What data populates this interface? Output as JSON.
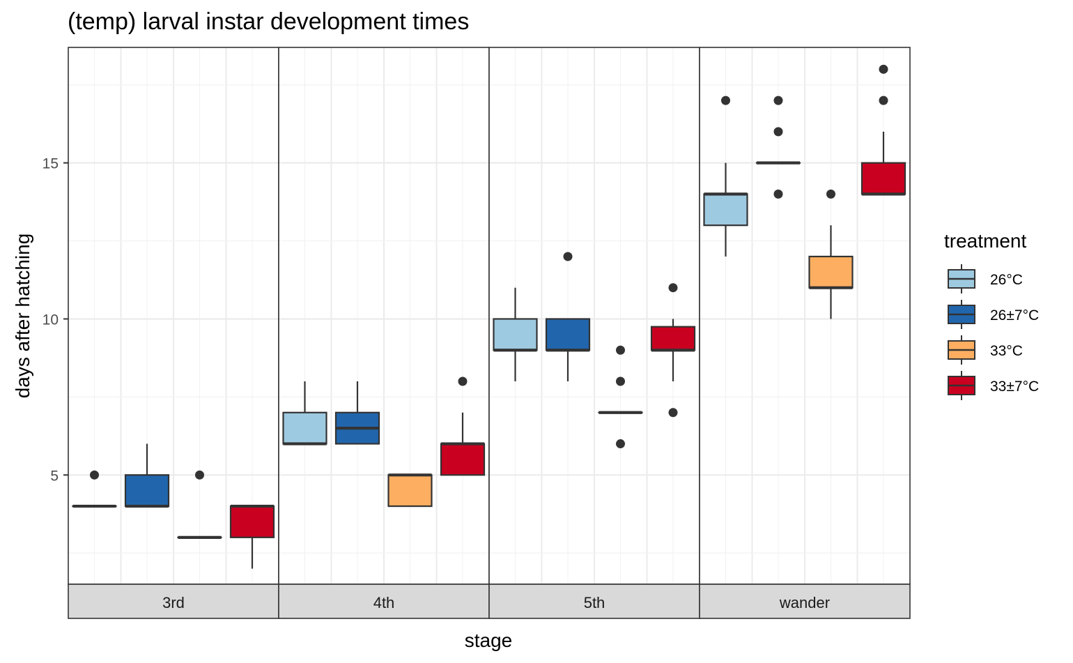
{
  "chart_data": {
    "type": "boxplot",
    "title": "(temp) larval instar development times",
    "xlabel": "stage",
    "ylabel": "days after hatching",
    "ylim": [
      1.5,
      18.7
    ],
    "yticks": [
      5,
      10,
      15
    ],
    "grid": true,
    "facets": [
      "3rd",
      "4th",
      "5th",
      "wander"
    ],
    "legend": {
      "title": "treatment",
      "position": "right",
      "entries": [
        {
          "label": "26°C",
          "color": "#9ecae1"
        },
        {
          "label": "26±7°C",
          "color": "#2166ac"
        },
        {
          "label": "33°C",
          "color": "#fdae61"
        },
        {
          "label": "33±7°C",
          "color": "#ca0020"
        }
      ]
    },
    "boxes": [
      {
        "facet": "3rd",
        "treatment": "26°C",
        "min": 4,
        "q1": 4,
        "median": 4,
        "q3": 4,
        "max": 4,
        "outliers": [
          5
        ]
      },
      {
        "facet": "3rd",
        "treatment": "26±7°C",
        "min": 4,
        "q1": 4,
        "median": 4,
        "q3": 5,
        "max": 6,
        "outliers": []
      },
      {
        "facet": "3rd",
        "treatment": "33°C",
        "min": 3,
        "q1": 3,
        "median": 3,
        "q3": 3,
        "max": 3,
        "outliers": [
          5
        ]
      },
      {
        "facet": "3rd",
        "treatment": "33±7°C",
        "min": 2,
        "q1": 3,
        "median": 4,
        "q3": 4,
        "max": 4,
        "outliers": []
      },
      {
        "facet": "4th",
        "treatment": "26°C",
        "min": 6,
        "q1": 6,
        "median": 6,
        "q3": 7,
        "max": 8,
        "outliers": []
      },
      {
        "facet": "4th",
        "treatment": "26±7°C",
        "min": 6,
        "q1": 6,
        "median": 6.5,
        "q3": 7,
        "max": 8,
        "outliers": []
      },
      {
        "facet": "4th",
        "treatment": "33°C",
        "min": 4,
        "q1": 4,
        "median": 5,
        "q3": 5,
        "max": 5,
        "outliers": []
      },
      {
        "facet": "4th",
        "treatment": "33±7°C",
        "min": 5,
        "q1": 5,
        "median": 6,
        "q3": 6,
        "max": 7,
        "outliers": [
          8
        ]
      },
      {
        "facet": "5th",
        "treatment": "26°C",
        "min": 8,
        "q1": 9,
        "median": 9,
        "q3": 10,
        "max": 11,
        "outliers": []
      },
      {
        "facet": "5th",
        "treatment": "26±7°C",
        "min": 8,
        "q1": 9,
        "median": 9,
        "q3": 10,
        "max": 10,
        "outliers": [
          12
        ]
      },
      {
        "facet": "5th",
        "treatment": "33°C",
        "min": 7,
        "q1": 7,
        "median": 7,
        "q3": 7,
        "max": 7,
        "outliers": [
          6,
          8,
          9
        ]
      },
      {
        "facet": "5th",
        "treatment": "33±7°C",
        "min": 8,
        "q1": 9,
        "median": 9,
        "q3": 9.75,
        "max": 10,
        "outliers": [
          7,
          11
        ]
      },
      {
        "facet": "wander",
        "treatment": "26°C",
        "min": 12,
        "q1": 13,
        "median": 14,
        "q3": 14,
        "max": 15,
        "outliers": [
          17
        ]
      },
      {
        "facet": "wander",
        "treatment": "26±7°C",
        "min": 15,
        "q1": 15,
        "median": 15,
        "q3": 15,
        "max": 15,
        "outliers": [
          14,
          16,
          17
        ]
      },
      {
        "facet": "wander",
        "treatment": "33°C",
        "min": 10,
        "q1": 11,
        "median": 11,
        "q3": 12,
        "max": 13,
        "outliers": [
          14
        ]
      },
      {
        "facet": "wander",
        "treatment": "33±7°C",
        "min": 14,
        "q1": 14,
        "median": 14,
        "q3": 15,
        "max": 16,
        "outliers": [
          17,
          18
        ]
      }
    ]
  }
}
